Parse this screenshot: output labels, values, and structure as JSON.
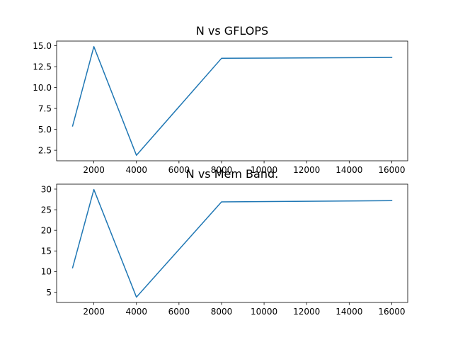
{
  "chart_data": [
    {
      "type": "line",
      "title": "N vs GFLOPS",
      "xlabel": "",
      "ylabel": "",
      "xlim": [
        250,
        16750
      ],
      "ylim": [
        1.24,
        15.56
      ],
      "x": [
        1000,
        2000,
        4000,
        8000,
        16000
      ],
      "series": [
        {
          "values": [
            5.4,
            14.9,
            1.9,
            13.5,
            13.6
          ]
        }
      ],
      "xticks": [
        2000,
        4000,
        6000,
        8000,
        10000,
        12000,
        14000,
        16000
      ],
      "yticks": [
        2.5,
        5.0,
        7.5,
        10.0,
        12.5,
        15.0
      ],
      "xtick_labels": [
        "2000",
        "4000",
        "6000",
        "8000",
        "10000",
        "12000",
        "14000",
        "16000"
      ],
      "ytick_labels": [
        "2.5",
        "5.0",
        "7.5",
        "10.0",
        "12.5",
        "15.0"
      ],
      "grid": false,
      "color": "#1f77b4"
    },
    {
      "type": "line",
      "title": "N vs Mem Band.",
      "xlabel": "",
      "ylabel": "",
      "xlim": [
        250,
        16750
      ],
      "ylim": [
        2.5,
        31.2
      ],
      "x": [
        1000,
        2000,
        4000,
        8000,
        16000
      ],
      "series": [
        {
          "values": [
            10.9,
            29.9,
            3.8,
            26.9,
            27.2
          ]
        }
      ],
      "xticks": [
        2000,
        4000,
        6000,
        8000,
        10000,
        12000,
        14000,
        16000
      ],
      "yticks": [
        5,
        10,
        15,
        20,
        25,
        30
      ],
      "xtick_labels": [
        "2000",
        "4000",
        "6000",
        "8000",
        "10000",
        "12000",
        "14000",
        "16000"
      ],
      "ytick_labels": [
        "5",
        "10",
        "15",
        "20",
        "25",
        "30"
      ],
      "grid": false,
      "color": "#1f77b4"
    }
  ]
}
